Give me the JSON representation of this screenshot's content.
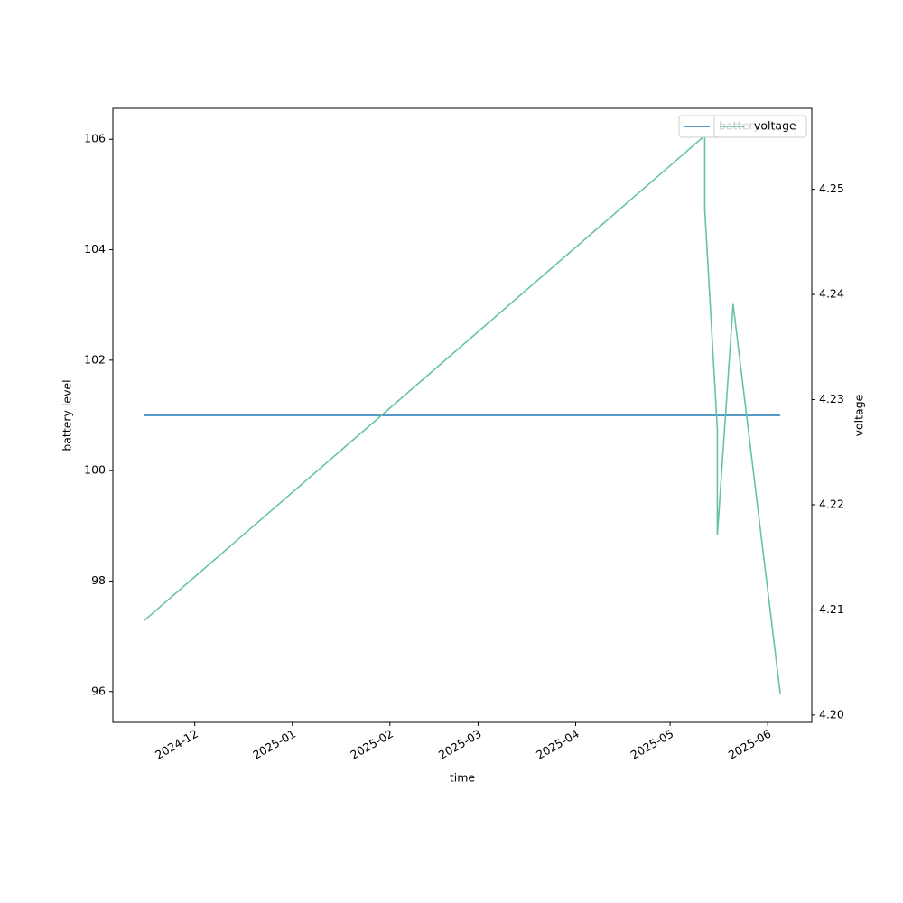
{
  "chart_data": {
    "type": "line",
    "x_label": "time",
    "y_label": "battery level",
    "y2_label": "voltage",
    "xlim": [
      "2024-11-05",
      "2025-06-15"
    ],
    "xticks": [
      {
        "value": "2024-12-01",
        "label": "2024-12"
      },
      {
        "value": "2025-01-01",
        "label": "2025-01"
      },
      {
        "value": "2025-02-01",
        "label": "2025-02"
      },
      {
        "value": "2025-03-01",
        "label": "2025-03"
      },
      {
        "value": "2025-04-01",
        "label": "2025-04"
      },
      {
        "value": "2025-05-01",
        "label": "2025-05"
      },
      {
        "value": "2025-06-01",
        "label": "2025-06"
      }
    ],
    "ylim": [
      95.44,
      106.56
    ],
    "yticks": [
      96,
      98,
      100,
      102,
      104,
      106
    ],
    "y2lim": [
      4.1993,
      4.2577
    ],
    "y2ticks": [
      {
        "value": 4.2,
        "label": "4.20"
      },
      4.21,
      4.22,
      4.23,
      4.24,
      4.25
    ],
    "series": [
      {
        "name": "battery",
        "color": "#1f77b4",
        "x": [
          "2024-11-15",
          "2025-06-05"
        ],
        "values": [
          101,
          101
        ]
      },
      {
        "name": "voltage",
        "color": "#66c2a5",
        "axis": "y2",
        "x": [
          "2024-11-15",
          "2025-05-12",
          "2025-05-12",
          "2025-05-16",
          "2025-05-16",
          "2025-05-21",
          "2025-06-05"
        ],
        "values": [
          4.209,
          4.2551,
          4.2481,
          4.2272,
          4.2171,
          4.2391,
          4.202
        ]
      }
    ]
  }
}
